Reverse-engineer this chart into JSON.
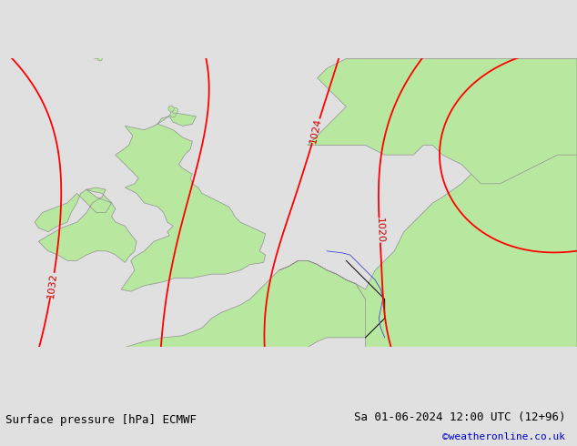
{
  "title_left": "Surface pressure [hPa] ECMWF",
  "title_right": "Sa 01-06-2024 12:00 UTC (12+96)",
  "credit": "©weatheronline.co.uk",
  "credit_color": "#0000cc",
  "background_sea": "#d4d4d4",
  "background_land": "#b8e8a0",
  "land_border_color": "#909090",
  "isobar_color": "#ff0000",
  "isobar_linewidth": 1.3,
  "isobar_label_color": "#cc0000",
  "isobar_label_fontsize": 8,
  "footer_bg": "#e0e0e0",
  "footer_fontsize": 9,
  "map_lon_min": -12,
  "map_lon_max": 18,
  "map_lat_min": 47,
  "map_lat_max": 62
}
